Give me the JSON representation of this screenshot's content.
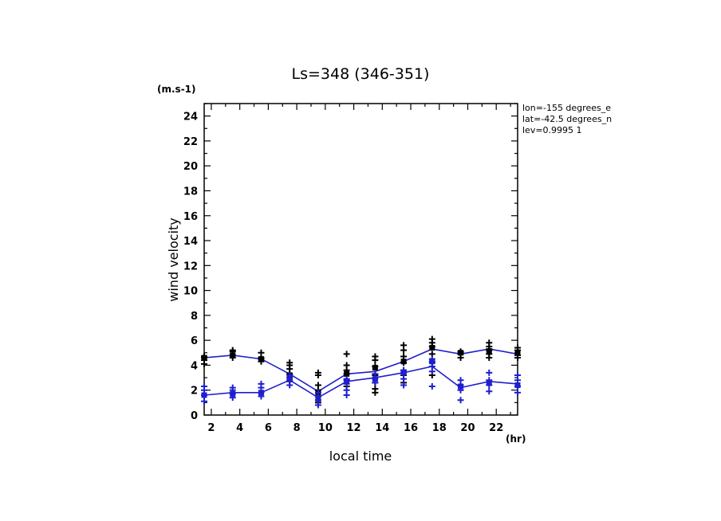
{
  "chart_data": {
    "type": "line",
    "title": "Ls=348 (346-351)",
    "xlabel": "local time",
    "ylabel": "wind velocity",
    "x_unit": "(hr)",
    "y_unit": "(m.s-1)",
    "xlim": [
      1.5,
      23.5
    ],
    "ylim": [
      0,
      25
    ],
    "x_ticks": [
      2,
      4,
      6,
      8,
      10,
      12,
      14,
      16,
      18,
      20,
      22
    ],
    "y_ticks": [
      0,
      2,
      4,
      6,
      8,
      10,
      12,
      14,
      16,
      18,
      20,
      22,
      24
    ],
    "x_tick_labels": [
      "2",
      "4",
      "6",
      "8",
      "10",
      "12",
      "14",
      "16",
      "18",
      "20",
      "22"
    ],
    "y_tick_labels": [
      "0",
      "2",
      "4",
      "6",
      "8",
      "10",
      "12",
      "14",
      "16",
      "18",
      "20",
      "22",
      "24"
    ],
    "info_lines": [
      "lon=-155 degrees_e",
      "lat=-42.5 degrees_n",
      "lev=0.9995 1"
    ],
    "grid": false,
    "series": [
      {
        "color": "#1f1fcf",
        "marker_color": "#000000",
        "x": [
          1.5,
          3.5,
          5.5,
          7.5,
          9.5,
          11.5,
          13.5,
          15.5,
          17.5,
          19.5,
          21.5,
          23.5
        ],
        "y": [
          4.6,
          4.8,
          4.5,
          3.3,
          1.9,
          3.3,
          3.5,
          4.3,
          5.3,
          4.9,
          5.3,
          4.9
        ],
        "scatter": [
          [
            1.5,
            4.1
          ],
          [
            1.5,
            4.4
          ],
          [
            1.5,
            4.6
          ],
          [
            1.5,
            4.7
          ],
          [
            3.5,
            4.6
          ],
          [
            3.5,
            4.8
          ],
          [
            3.5,
            5.1
          ],
          [
            3.5,
            5.2
          ],
          [
            5.5,
            4.3
          ],
          [
            5.5,
            4.5
          ],
          [
            5.5,
            4.6
          ],
          [
            5.5,
            5.0
          ],
          [
            7.5,
            2.7
          ],
          [
            7.5,
            3.0
          ],
          [
            7.5,
            3.3
          ],
          [
            7.5,
            3.7
          ],
          [
            7.5,
            4.0
          ],
          [
            7.5,
            4.2
          ],
          [
            9.5,
            1.0
          ],
          [
            9.5,
            1.5
          ],
          [
            9.5,
            2.0
          ],
          [
            9.5,
            2.4
          ],
          [
            9.5,
            3.2
          ],
          [
            9.5,
            3.4
          ],
          [
            11.5,
            2.3
          ],
          [
            11.5,
            2.8
          ],
          [
            11.5,
            3.3
          ],
          [
            11.5,
            3.6
          ],
          [
            11.5,
            4.0
          ],
          [
            11.5,
            4.9
          ],
          [
            13.5,
            1.8
          ],
          [
            13.5,
            2.1
          ],
          [
            13.5,
            2.6
          ],
          [
            13.5,
            3.2
          ],
          [
            13.5,
            3.9
          ],
          [
            13.5,
            4.4
          ],
          [
            13.5,
            4.7
          ],
          [
            15.5,
            2.6
          ],
          [
            15.5,
            3.2
          ],
          [
            15.5,
            3.6
          ],
          [
            15.5,
            4.2
          ],
          [
            15.5,
            4.7
          ],
          [
            15.5,
            5.2
          ],
          [
            15.5,
            5.6
          ],
          [
            17.5,
            3.2
          ],
          [
            17.5,
            4.2
          ],
          [
            17.5,
            4.9
          ],
          [
            17.5,
            5.5
          ],
          [
            17.5,
            5.8
          ],
          [
            17.5,
            6.1
          ],
          [
            19.5,
            4.6
          ],
          [
            19.5,
            4.9
          ],
          [
            19.5,
            5.0
          ],
          [
            19.5,
            5.1
          ],
          [
            21.5,
            4.6
          ],
          [
            21.5,
            4.9
          ],
          [
            21.5,
            5.2
          ],
          [
            21.5,
            5.3
          ],
          [
            21.5,
            5.5
          ],
          [
            21.5,
            5.8
          ],
          [
            23.5,
            4.6
          ],
          [
            23.5,
            4.8
          ],
          [
            23.5,
            5.2
          ],
          [
            23.5,
            5.4
          ]
        ],
        "squares": [
          [
            1.5,
            4.6
          ],
          [
            3.5,
            4.8
          ],
          [
            5.5,
            4.5
          ],
          [
            7.5,
            3.2
          ],
          [
            9.5,
            1.8
          ],
          [
            11.5,
            3.3
          ],
          [
            13.5,
            3.8
          ],
          [
            15.5,
            4.3
          ],
          [
            17.5,
            5.4
          ],
          [
            19.5,
            5.0
          ],
          [
            21.5,
            5.1
          ],
          [
            23.5,
            5.0
          ]
        ]
      },
      {
        "color": "#1f1fcf",
        "marker_color": "#1f1fcf",
        "x": [
          1.5,
          3.5,
          5.5,
          7.5,
          9.5,
          11.5,
          13.5,
          15.5,
          17.5,
          19.5,
          21.5,
          23.5
        ],
        "y": [
          1.6,
          1.8,
          1.8,
          2.8,
          1.4,
          2.7,
          3.0,
          3.4,
          3.9,
          2.2,
          2.7,
          2.5
        ],
        "scatter": [
          [
            1.5,
            1.1
          ],
          [
            1.5,
            1.6
          ],
          [
            1.5,
            2.0
          ],
          [
            1.5,
            2.3
          ],
          [
            3.5,
            1.4
          ],
          [
            3.5,
            1.7
          ],
          [
            3.5,
            2.0
          ],
          [
            3.5,
            2.2
          ],
          [
            5.5,
            1.5
          ],
          [
            5.5,
            1.8
          ],
          [
            5.5,
            2.2
          ],
          [
            5.5,
            2.5
          ],
          [
            7.5,
            2.4
          ],
          [
            7.5,
            2.8
          ],
          [
            7.5,
            3.2
          ],
          [
            9.5,
            0.8
          ],
          [
            9.5,
            1.2
          ],
          [
            9.5,
            1.5
          ],
          [
            9.5,
            1.8
          ],
          [
            11.5,
            1.6
          ],
          [
            11.5,
            2.0
          ],
          [
            11.5,
            2.5
          ],
          [
            11.5,
            2.9
          ],
          [
            13.5,
            2.6
          ],
          [
            13.5,
            2.9
          ],
          [
            13.5,
            3.3
          ],
          [
            15.5,
            2.4
          ],
          [
            15.5,
            2.9
          ],
          [
            15.5,
            3.4
          ],
          [
            15.5,
            3.6
          ],
          [
            17.5,
            2.3
          ],
          [
            17.5,
            3.5
          ],
          [
            17.5,
            3.9
          ],
          [
            17.5,
            4.3
          ],
          [
            17.5,
            4.5
          ],
          [
            19.5,
            1.2
          ],
          [
            19.5,
            2.0
          ],
          [
            19.5,
            2.4
          ],
          [
            19.5,
            2.8
          ],
          [
            21.5,
            1.9
          ],
          [
            21.5,
            2.4
          ],
          [
            21.5,
            2.8
          ],
          [
            21.5,
            3.4
          ],
          [
            23.5,
            1.8
          ],
          [
            23.5,
            2.3
          ],
          [
            23.5,
            2.8
          ],
          [
            23.5,
            3.2
          ]
        ],
        "squares": [
          [
            1.5,
            1.6
          ],
          [
            3.5,
            1.7
          ],
          [
            5.5,
            1.8
          ],
          [
            7.5,
            2.9
          ],
          [
            9.5,
            1.3
          ],
          [
            11.5,
            2.7
          ],
          [
            13.5,
            2.9
          ],
          [
            15.5,
            3.4
          ],
          [
            17.5,
            4.3
          ],
          [
            19.5,
            2.3
          ],
          [
            21.5,
            2.6
          ],
          [
            23.5,
            2.4
          ]
        ]
      }
    ]
  }
}
